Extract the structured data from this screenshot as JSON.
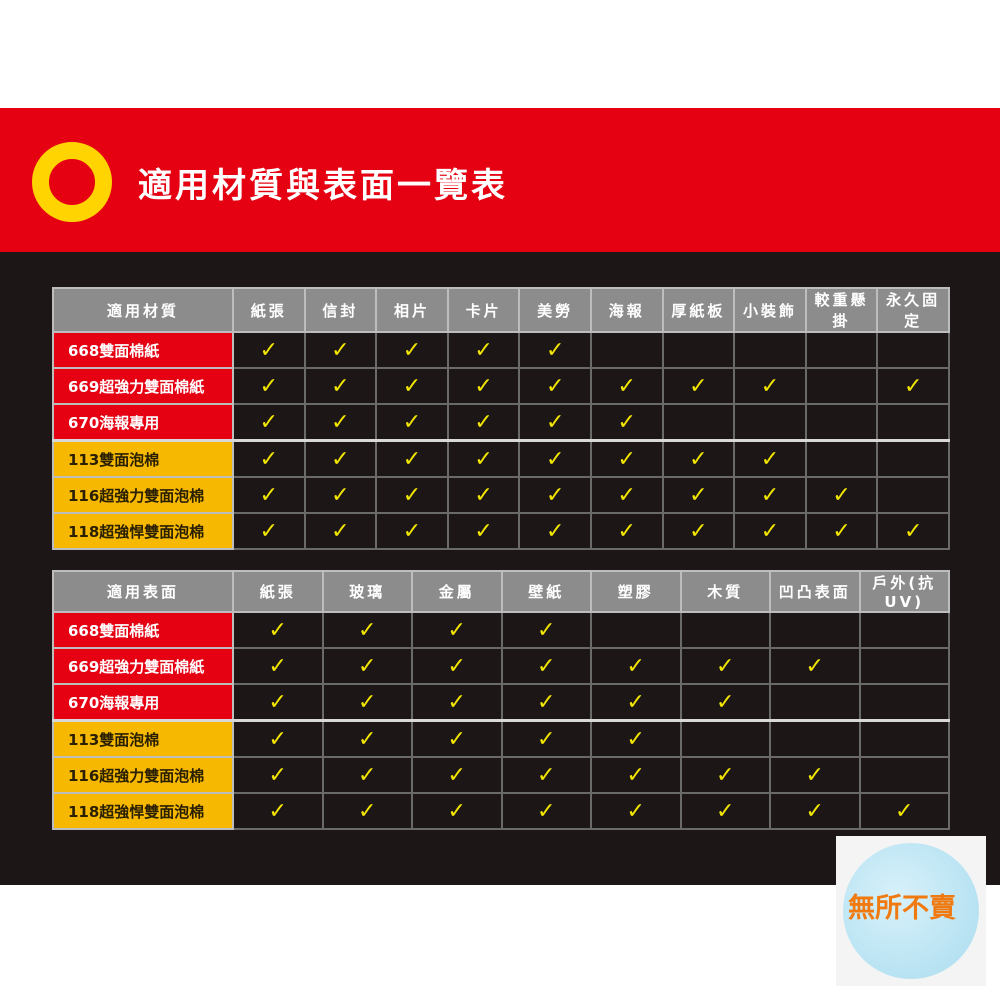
{
  "title": "適用材質與表面一覽表",
  "colors": {
    "banner": "#e50012",
    "ring": "#ffd400",
    "check": "#f2e600",
    "paper_rows": "#e50012",
    "foam_rows": "#f6b800"
  },
  "logo_text": "無所不賣",
  "tables": [
    {
      "header": "適用材質",
      "columns": [
        "紙張",
        "信封",
        "相片",
        "卡片",
        "美勞",
        "海報",
        "厚紙板",
        "小裝飾",
        "較重懸掛",
        "永久固定"
      ],
      "rows": [
        {
          "label": "668雙面棉紙",
          "type": "red",
          "checks": [
            1,
            1,
            1,
            1,
            1,
            0,
            0,
            0,
            0,
            0
          ]
        },
        {
          "label": "669超強力雙面棉紙",
          "type": "red",
          "checks": [
            1,
            1,
            1,
            1,
            1,
            1,
            1,
            1,
            0,
            1
          ]
        },
        {
          "label": "670海報專用",
          "type": "red",
          "checks": [
            1,
            1,
            1,
            1,
            1,
            1,
            0,
            0,
            0,
            0
          ]
        },
        {
          "label": "113雙面泡棉",
          "type": "yel",
          "checks": [
            1,
            1,
            1,
            1,
            1,
            1,
            1,
            1,
            0,
            0
          ]
        },
        {
          "label": "116超強力雙面泡棉",
          "type": "yel",
          "checks": [
            1,
            1,
            1,
            1,
            1,
            1,
            1,
            1,
            1,
            0
          ]
        },
        {
          "label": "118超強悍雙面泡棉",
          "type": "yel",
          "checks": [
            1,
            1,
            1,
            1,
            1,
            1,
            1,
            1,
            1,
            1
          ]
        }
      ]
    },
    {
      "header": "適用表面",
      "columns": [
        "紙張",
        "玻璃",
        "金屬",
        "壁紙",
        "塑膠",
        "木質",
        "凹凸表面",
        "戶外(抗UV)"
      ],
      "rows": [
        {
          "label": "668雙面棉紙",
          "type": "red",
          "checks": [
            1,
            1,
            1,
            1,
            0,
            0,
            0,
            0
          ]
        },
        {
          "label": "669超強力雙面棉紙",
          "type": "red",
          "checks": [
            1,
            1,
            1,
            1,
            1,
            1,
            1,
            0
          ]
        },
        {
          "label": "670海報專用",
          "type": "red",
          "checks": [
            1,
            1,
            1,
            1,
            1,
            1,
            0,
            0
          ]
        },
        {
          "label": "113雙面泡棉",
          "type": "yel",
          "checks": [
            1,
            1,
            1,
            1,
            1,
            0,
            0,
            0
          ]
        },
        {
          "label": "116超強力雙面泡棉",
          "type": "yel",
          "checks": [
            1,
            1,
            1,
            1,
            1,
            1,
            1,
            0
          ]
        },
        {
          "label": "118超強悍雙面泡棉",
          "type": "yel",
          "checks": [
            1,
            1,
            1,
            1,
            1,
            1,
            1,
            1
          ]
        }
      ]
    }
  ],
  "check_mark": "✓"
}
